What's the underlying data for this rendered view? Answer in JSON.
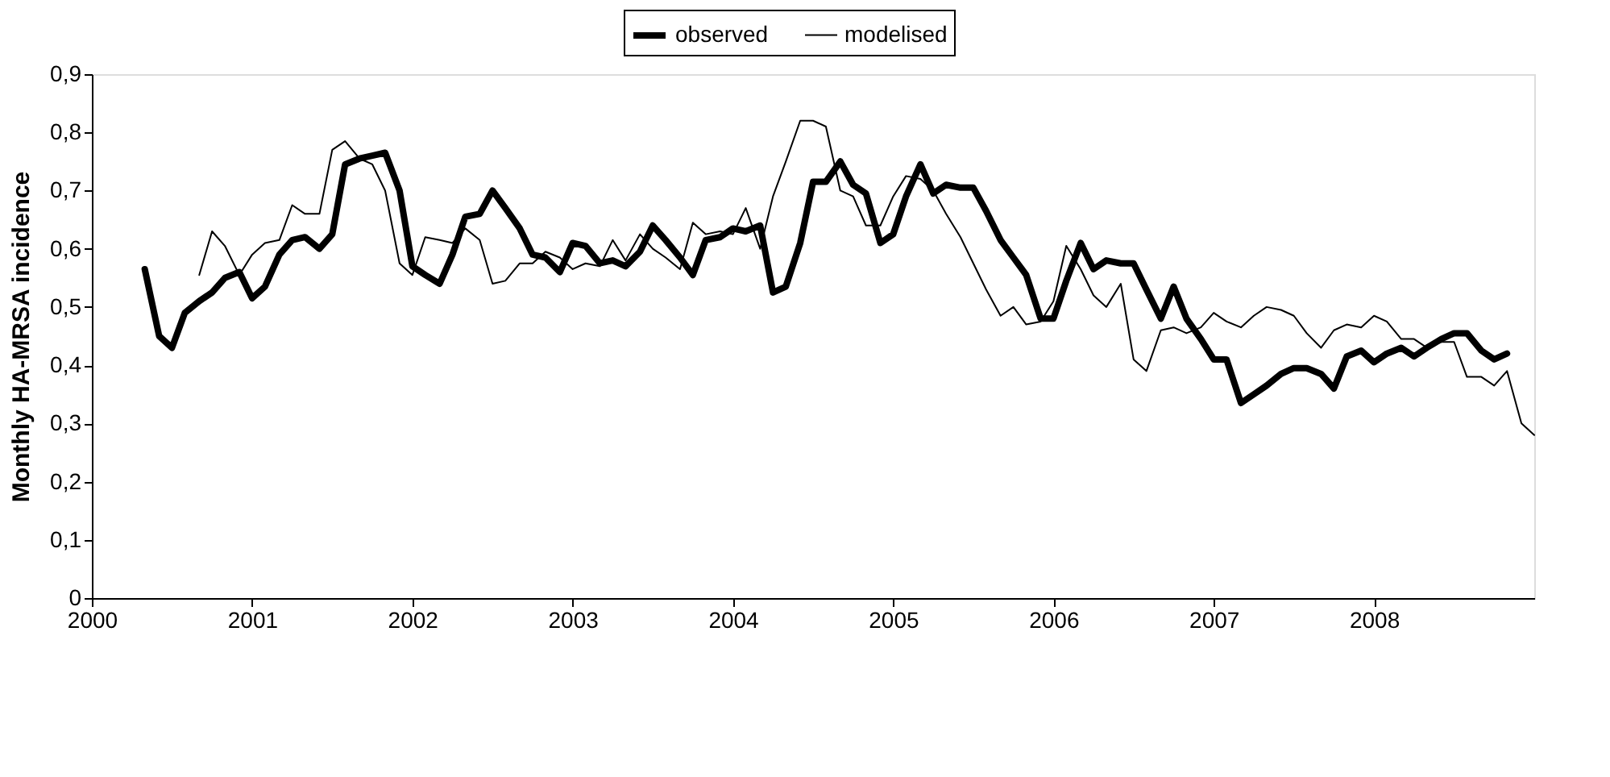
{
  "chart_data": {
    "type": "line",
    "ylabel": "Monthly HA-MRSA incidence",
    "legend": "top",
    "grid": false,
    "marker": "none",
    "line_style": "solid",
    "xlim": [
      2000,
      2009
    ],
    "xticks": [
      2000,
      2001,
      2002,
      2003,
      2004,
      2005,
      2006,
      2007,
      2008
    ],
    "ylim": [
      0,
      0.9
    ],
    "yticks": [
      {
        "value": 0,
        "label": "0"
      },
      {
        "value": 0.1,
        "label": "0,1"
      },
      {
        "value": 0.2,
        "label": "0,2"
      },
      {
        "value": 0.3,
        "label": "0,3"
      },
      {
        "value": 0.4,
        "label": "0,4"
      },
      {
        "value": 0.5,
        "label": "0,5"
      },
      {
        "value": 0.6,
        "label": "0,6"
      },
      {
        "value": 0.7,
        "label": "0,7"
      },
      {
        "value": 0.8,
        "label": "0,8"
      },
      {
        "value": 0.9,
        "label": "0,9"
      }
    ],
    "series": [
      {
        "name": "observed",
        "color": "#000000",
        "x": [
          2000.33,
          2000.42,
          2000.5,
          2000.58,
          2000.67,
          2000.75,
          2000.83,
          2000.92,
          2001.0,
          2001.08,
          2001.17,
          2001.25,
          2001.33,
          2001.42,
          2001.5,
          2001.58,
          2001.67,
          2001.75,
          2001.83,
          2001.92,
          2002.0,
          2002.08,
          2002.17,
          2002.25,
          2002.33,
          2002.42,
          2002.5,
          2002.58,
          2002.67,
          2002.75,
          2002.83,
          2002.92,
          2003.0,
          2003.08,
          2003.17,
          2003.25,
          2003.33,
          2003.42,
          2003.5,
          2003.58,
          2003.67,
          2003.75,
          2003.83,
          2003.92,
          2004.0,
          2004.08,
          2004.17,
          2004.25,
          2004.33,
          2004.42,
          2004.5,
          2004.58,
          2004.67,
          2004.75,
          2004.83,
          2004.92,
          2005.0,
          2005.08,
          2005.17,
          2005.25,
          2005.33,
          2005.42,
          2005.5,
          2005.58,
          2005.67,
          2005.75,
          2005.83,
          2005.92,
          2006.0,
          2006.08,
          2006.17,
          2006.25,
          2006.33,
          2006.42,
          2006.5,
          2006.58,
          2006.67,
          2006.75,
          2006.83,
          2006.92,
          2007.0,
          2007.08,
          2007.17,
          2007.25,
          2007.33,
          2007.42,
          2007.5,
          2007.58,
          2007.67,
          2007.75,
          2007.83,
          2007.92,
          2008.0,
          2008.08,
          2008.17,
          2008.25,
          2008.33,
          2008.42,
          2008.5,
          2008.58,
          2008.67,
          2008.75,
          2008.83
        ],
        "values": [
          0.565,
          0.45,
          0.43,
          0.49,
          0.51,
          0.525,
          0.55,
          0.56,
          0.515,
          0.535,
          0.59,
          0.615,
          0.62,
          0.6,
          0.625,
          0.745,
          0.755,
          0.76,
          0.765,
          0.7,
          0.57,
          0.555,
          0.54,
          0.59,
          0.655,
          0.66,
          0.7,
          0.67,
          0.635,
          0.59,
          0.585,
          0.56,
          0.61,
          0.605,
          0.575,
          0.58,
          0.57,
          0.595,
          0.64,
          0.615,
          0.585,
          0.555,
          0.615,
          0.62,
          0.635,
          0.63,
          0.64,
          0.525,
          0.535,
          0.61,
          0.715,
          0.715,
          0.75,
          0.71,
          0.695,
          0.61,
          0.625,
          0.69,
          0.745,
          0.695,
          0.71,
          0.705,
          0.705,
          0.665,
          0.615,
          0.585,
          0.555,
          0.48,
          0.48,
          0.545,
          0.61,
          0.565,
          0.58,
          0.575,
          0.575,
          0.53,
          0.48,
          0.535,
          0.48,
          0.445,
          0.41,
          0.41,
          0.335,
          0.35,
          0.365,
          0.385,
          0.395,
          0.395,
          0.385,
          0.36,
          0.415,
          0.425,
          0.405,
          0.42,
          0.43,
          0.415,
          0.43,
          0.445,
          0.455,
          0.455,
          0.425,
          0.41,
          0.42
        ]
      },
      {
        "name": "modelised",
        "color": "#000000",
        "x": [
          2000.67,
          2000.75,
          2000.83,
          2000.92,
          2001.0,
          2001.08,
          2001.17,
          2001.25,
          2001.33,
          2001.42,
          2001.5,
          2001.58,
          2001.67,
          2001.75,
          2001.83,
          2001.92,
          2002.0,
          2002.08,
          2002.17,
          2002.25,
          2002.33,
          2002.42,
          2002.5,
          2002.58,
          2002.67,
          2002.75,
          2002.83,
          2002.92,
          2003.0,
          2003.08,
          2003.17,
          2003.25,
          2003.33,
          2003.42,
          2003.5,
          2003.58,
          2003.67,
          2003.75,
          2003.83,
          2003.92,
          2004.0,
          2004.08,
          2004.17,
          2004.25,
          2004.33,
          2004.42,
          2004.5,
          2004.58,
          2004.67,
          2004.75,
          2004.83,
          2004.92,
          2005.0,
          2005.08,
          2005.17,
          2005.25,
          2005.33,
          2005.42,
          2005.5,
          2005.58,
          2005.67,
          2005.75,
          2005.83,
          2005.92,
          2006.0,
          2006.08,
          2006.17,
          2006.25,
          2006.33,
          2006.42,
          2006.5,
          2006.58,
          2006.67,
          2006.75,
          2006.83,
          2006.92,
          2007.0,
          2007.08,
          2007.17,
          2007.25,
          2007.33,
          2007.42,
          2007.5,
          2007.58,
          2007.67,
          2007.75,
          2007.83,
          2007.92,
          2008.0,
          2008.08,
          2008.17,
          2008.25,
          2008.33,
          2008.42,
          2008.5,
          2008.58,
          2008.67,
          2008.75,
          2008.83,
          2008.92,
          2009.0
        ],
        "values": [
          0.555,
          0.63,
          0.605,
          0.555,
          0.59,
          0.61,
          0.615,
          0.675,
          0.66,
          0.66,
          0.77,
          0.785,
          0.755,
          0.745,
          0.7,
          0.575,
          0.555,
          0.62,
          0.615,
          0.61,
          0.635,
          0.615,
          0.54,
          0.545,
          0.575,
          0.575,
          0.595,
          0.585,
          0.565,
          0.575,
          0.57,
          0.615,
          0.58,
          0.625,
          0.6,
          0.585,
          0.565,
          0.645,
          0.625,
          0.63,
          0.625,
          0.67,
          0.6,
          0.69,
          0.75,
          0.82,
          0.82,
          0.81,
          0.7,
          0.69,
          0.64,
          0.64,
          0.69,
          0.725,
          0.72,
          0.7,
          0.66,
          0.62,
          0.575,
          0.53,
          0.485,
          0.5,
          0.47,
          0.475,
          0.51,
          0.605,
          0.565,
          0.52,
          0.5,
          0.54,
          0.41,
          0.39,
          0.46,
          0.465,
          0.455,
          0.465,
          0.49,
          0.475,
          0.465,
          0.485,
          0.5,
          0.495,
          0.485,
          0.455,
          0.43,
          0.46,
          0.47,
          0.465,
          0.485,
          0.475,
          0.445,
          0.445,
          0.43,
          0.44,
          0.44,
          0.38,
          0.38,
          0.365,
          0.39,
          0.3,
          0.28
        ]
      }
    ]
  }
}
